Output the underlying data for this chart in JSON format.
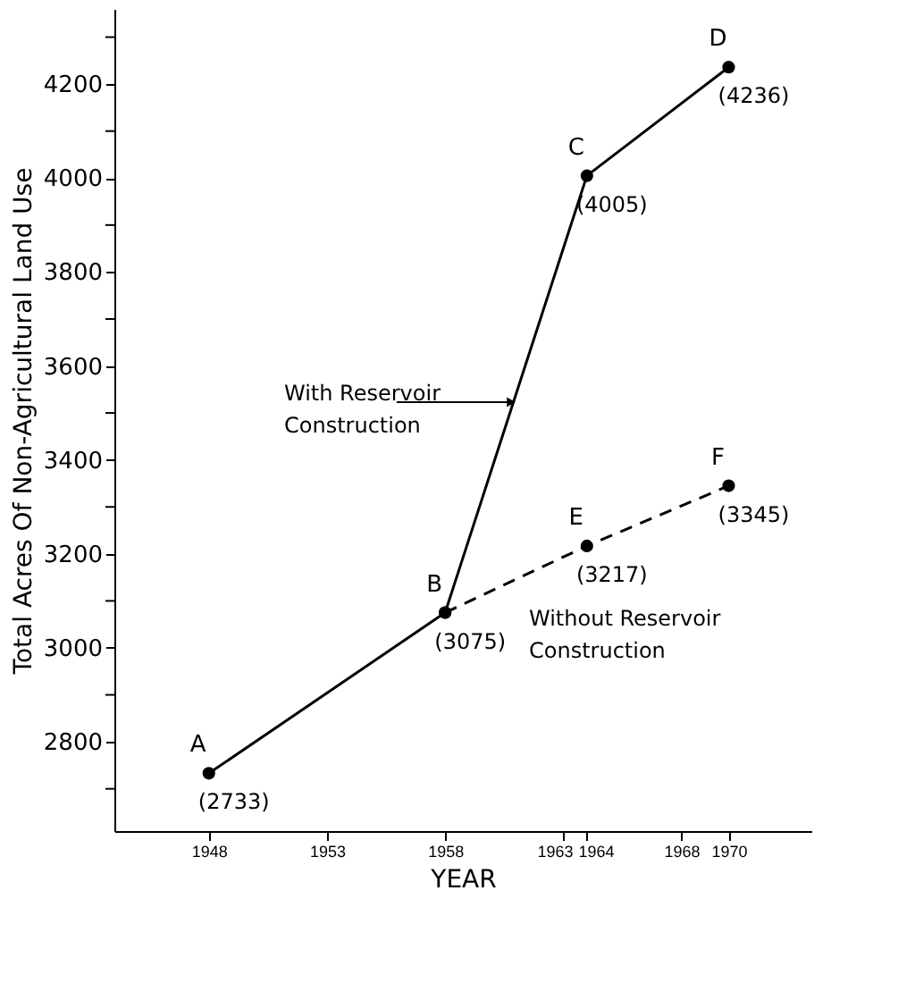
{
  "chart_data": {
    "type": "line",
    "xlabel": "YEAR",
    "ylabel": "Total Acres Of Non-Agricultural Land Use",
    "xlim": [
      1944,
      1973.5
    ],
    "xticks": [
      1948,
      1953,
      1958,
      1963,
      1964,
      1968,
      1970
    ],
    "ylim": [
      2610,
      4360
    ],
    "yticks": [
      {
        "value": 2700,
        "label": null
      },
      2800,
      {
        "value": 2900,
        "label": null
      },
      3000,
      {
        "value": 3100,
        "label": null
      },
      3200,
      {
        "value": 3300,
        "label": null
      },
      3400,
      {
        "value": 3500,
        "label": null
      },
      3600,
      {
        "value": 3700,
        "label": null
      },
      3800,
      {
        "value": 3900,
        "label": null
      },
      4000,
      {
        "value": 4100,
        "label": null
      },
      4200,
      {
        "value": 4300,
        "label": null
      }
    ],
    "series": [
      {
        "name": "With Reservoir Construction",
        "color": "#000000",
        "line_style": "solid",
        "x": [
          1948,
          1958,
          1964,
          1970
        ],
        "values": [
          2733,
          3075,
          4005,
          4236
        ],
        "value_labels": [
          "(2733)",
          "(3075)",
          "(4005)",
          "(4236)"
        ]
      },
      {
        "name": "Without Reservoir Construction",
        "color": "#000000",
        "line_style": "dashed",
        "x": [
          1958,
          1964,
          1970
        ],
        "values": [
          3075,
          3217,
          3345
        ],
        "value_labels": [
          null,
          "(3217)",
          "(3345)"
        ]
      }
    ],
    "annotations": [
      {
        "text": "A",
        "x": 1948,
        "y": 2733
      },
      {
        "text": "B",
        "x": 1958,
        "y": 3075
      },
      {
        "text": "C",
        "x": 1964,
        "y": 4005
      },
      {
        "text": "D",
        "x": 1970,
        "y": 4236
      },
      {
        "text": "E",
        "x": 1964,
        "y": 3217
      },
      {
        "text": "F",
        "x": 1970,
        "y": 3345
      }
    ],
    "marker": "circle",
    "grid": false
  }
}
